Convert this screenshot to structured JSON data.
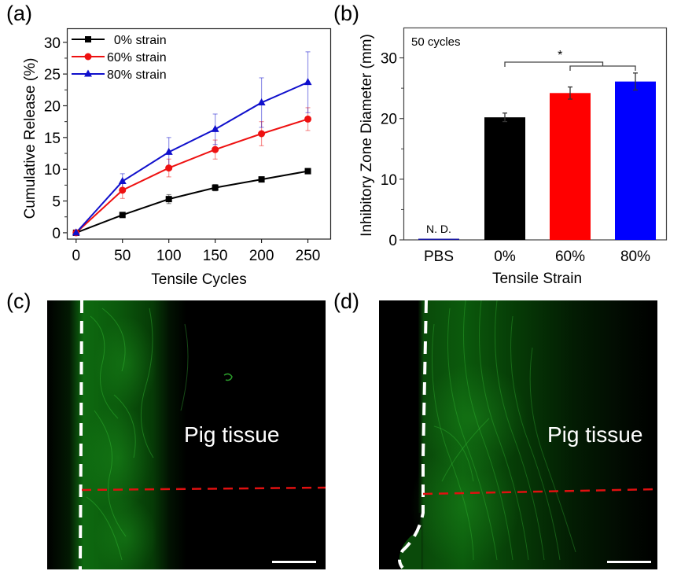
{
  "panel_labels": {
    "a": "(a)",
    "b": "(b)",
    "c": "(c)",
    "d": "(d)"
  },
  "chart_data": [
    {
      "id": "a",
      "type": "line",
      "title": "",
      "xlabel": "Tensile Cycles",
      "ylabel": "Cumulative Release (%)",
      "x": [
        0,
        50,
        100,
        150,
        200,
        250
      ],
      "xlim": [
        -10,
        275
      ],
      "ylim": [
        -1,
        32.2
      ],
      "xticks": [
        0,
        50,
        100,
        150,
        200,
        250
      ],
      "yticks": [
        0,
        5,
        10,
        15,
        20,
        25,
        30
      ],
      "grid": false,
      "legend_position": "top-left",
      "series": [
        {
          "name": "0% strain",
          "label": "  0% strain",
          "color": "#000000",
          "marker": "square",
          "values": [
            0,
            2.8,
            5.3,
            7.1,
            8.4,
            9.7
          ],
          "errors": [
            0.1,
            0.2,
            0.7,
            0.5,
            0.4,
            0.4
          ]
        },
        {
          "name": "60% strain",
          "label": "60% strain",
          "color": "#ee1111",
          "marker": "circle",
          "values": [
            0,
            6.7,
            10.2,
            13.1,
            15.6,
            17.9
          ],
          "errors": [
            0.1,
            1.3,
            1.4,
            1.5,
            1.9,
            1.8
          ]
        },
        {
          "name": "80% strain",
          "label": "80% strain",
          "color": "#1010cc",
          "marker": "triangle",
          "values": [
            0,
            8.1,
            12.7,
            16.3,
            20.5,
            23.7
          ],
          "errors": [
            0.1,
            1.2,
            2.3,
            2.4,
            3.9,
            4.8
          ]
        }
      ]
    },
    {
      "id": "b",
      "type": "bar",
      "title": "",
      "annotation": "50 cycles",
      "xlabel": "Tensile Strain",
      "ylabel": "Inhibitory Zone Diameter (mm)",
      "categories": [
        "PBS",
        "0%",
        "60%",
        "80%"
      ],
      "values": [
        0,
        20.2,
        24.2,
        26.1
      ],
      "errors": [
        0,
        0.7,
        1.0,
        1.4
      ],
      "colors": [
        "#1a1aa0",
        "#000000",
        "#ff0000",
        "#0000ff"
      ],
      "value_labels": [
        "N. D.",
        "",
        "",
        ""
      ],
      "ylim": [
        0,
        35
      ],
      "yticks": [
        0,
        10,
        20,
        30
      ],
      "minor_yticks": [
        5,
        15,
        25
      ],
      "grid": false,
      "significance": {
        "label": "*",
        "comparison": "0% vs (60% and 80%)"
      }
    }
  ],
  "micrographs": [
    {
      "id": "c",
      "label": "Pig tissue"
    },
    {
      "id": "d",
      "label": "Pig tissue"
    }
  ]
}
